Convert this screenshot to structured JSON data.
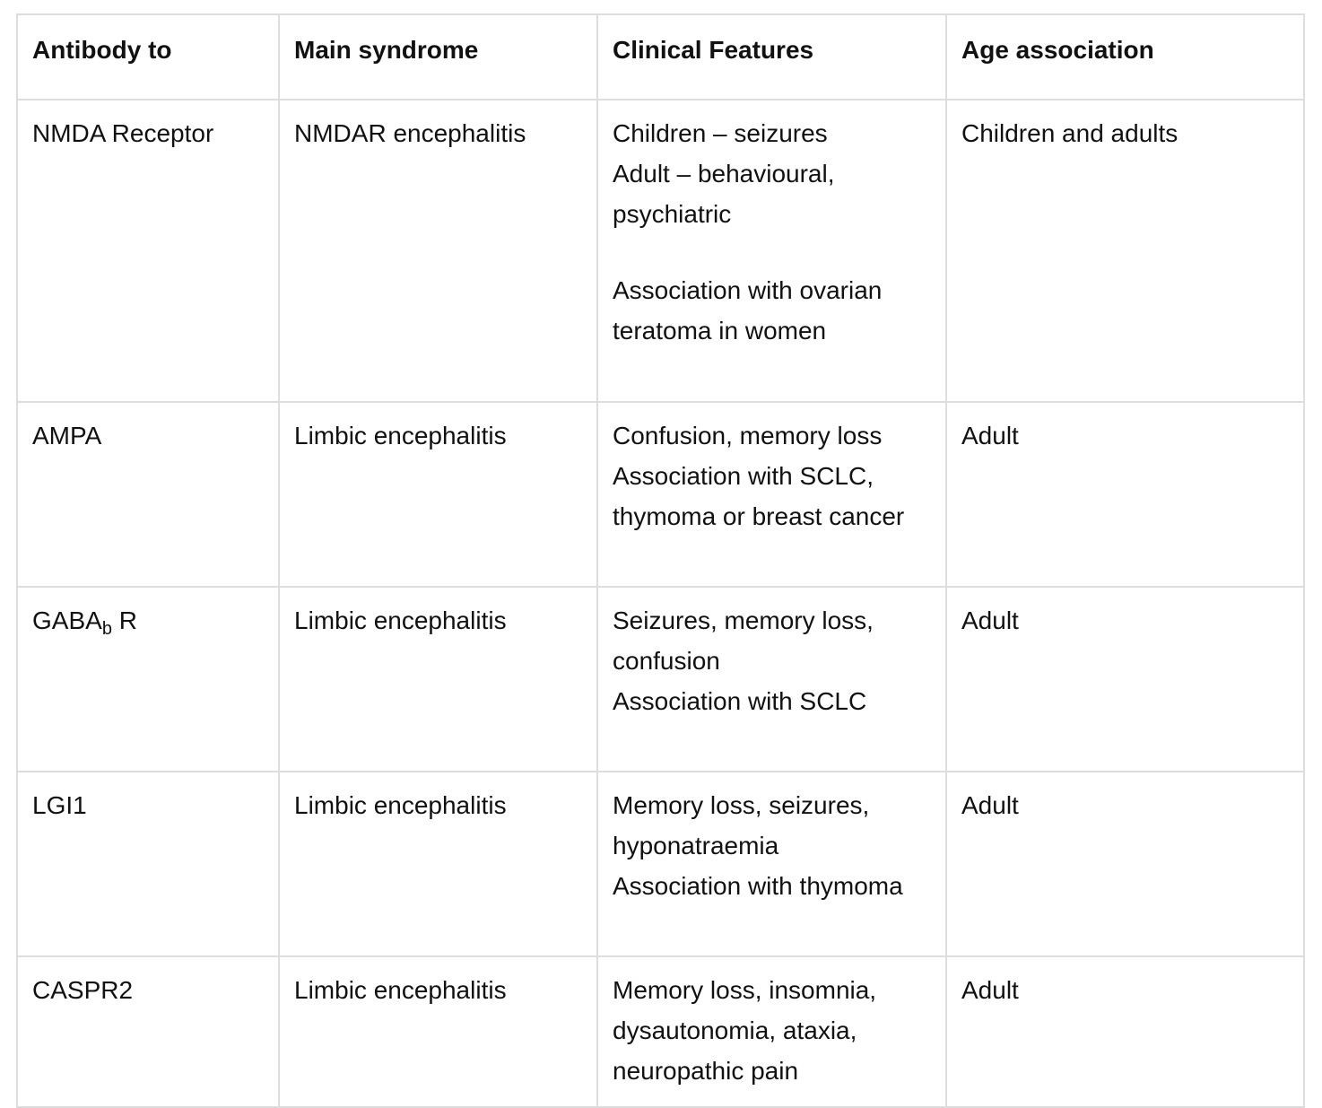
{
  "table": {
    "headers": [
      "Antibody to",
      "Main syndrome",
      "Clinical Features",
      "Age association"
    ],
    "rows": [
      {
        "antibody": "NMDA Receptor",
        "syndrome": "NMDAR encephalitis",
        "features": [
          "Children – seizures",
          "Adult – behavioural,",
          "psychiatric",
          "Association with ovarian",
          "teratoma in women"
        ],
        "age": "Children and adults"
      },
      {
        "antibody": "AMPA",
        "syndrome": "Limbic encephalitis",
        "features": [
          "Confusion, memory loss",
          "Association with SCLC,",
          "thymoma or breast cancer"
        ],
        "age": "Adult"
      },
      {
        "antibody_main": "GABA",
        "antibody_sub": "b",
        "antibody_suffix": " R",
        "syndrome": "Limbic encephalitis",
        "features": [
          "Seizures, memory loss,",
          "confusion",
          "Association with SCLC"
        ],
        "age": "Adult"
      },
      {
        "antibody": "LGI1",
        "syndrome": "Limbic encephalitis",
        "features": [
          "Memory loss, seizures,",
          "hyponatraemia",
          "Association with thymoma"
        ],
        "age": "Adult"
      },
      {
        "antibody": "CASPR2",
        "syndrome": "Limbic encephalitis",
        "features": [
          "Memory loss, insomnia,",
          "dysautonomia, ataxia,",
          "neuropathic pain"
        ],
        "age": "Adult"
      }
    ]
  }
}
